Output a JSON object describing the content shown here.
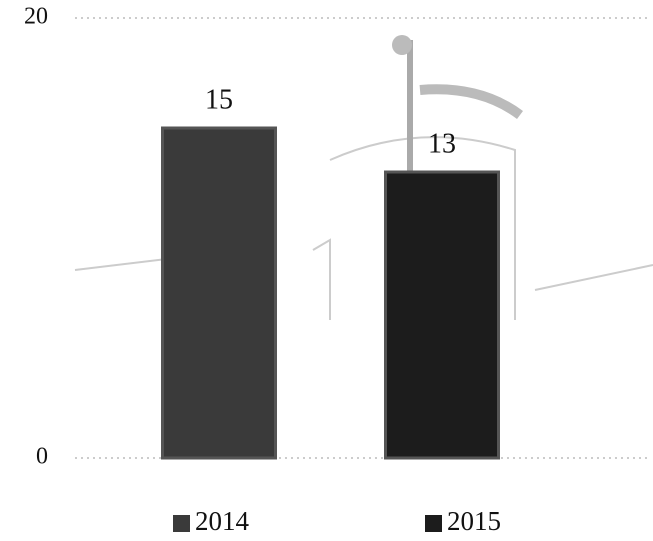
{
  "chart_data": {
    "type": "bar",
    "categories": [
      null
    ],
    "series": [
      {
        "name": "2014",
        "color": "#3a3a3a",
        "values": [
          15
        ]
      },
      {
        "name": "2015",
        "color": "#1c1c1c",
        "values": [
          13
        ]
      }
    ],
    "ylim": [
      0,
      20
    ],
    "yticks": [
      0,
      20
    ],
    "grid": true,
    "legend": "bottom"
  }
}
